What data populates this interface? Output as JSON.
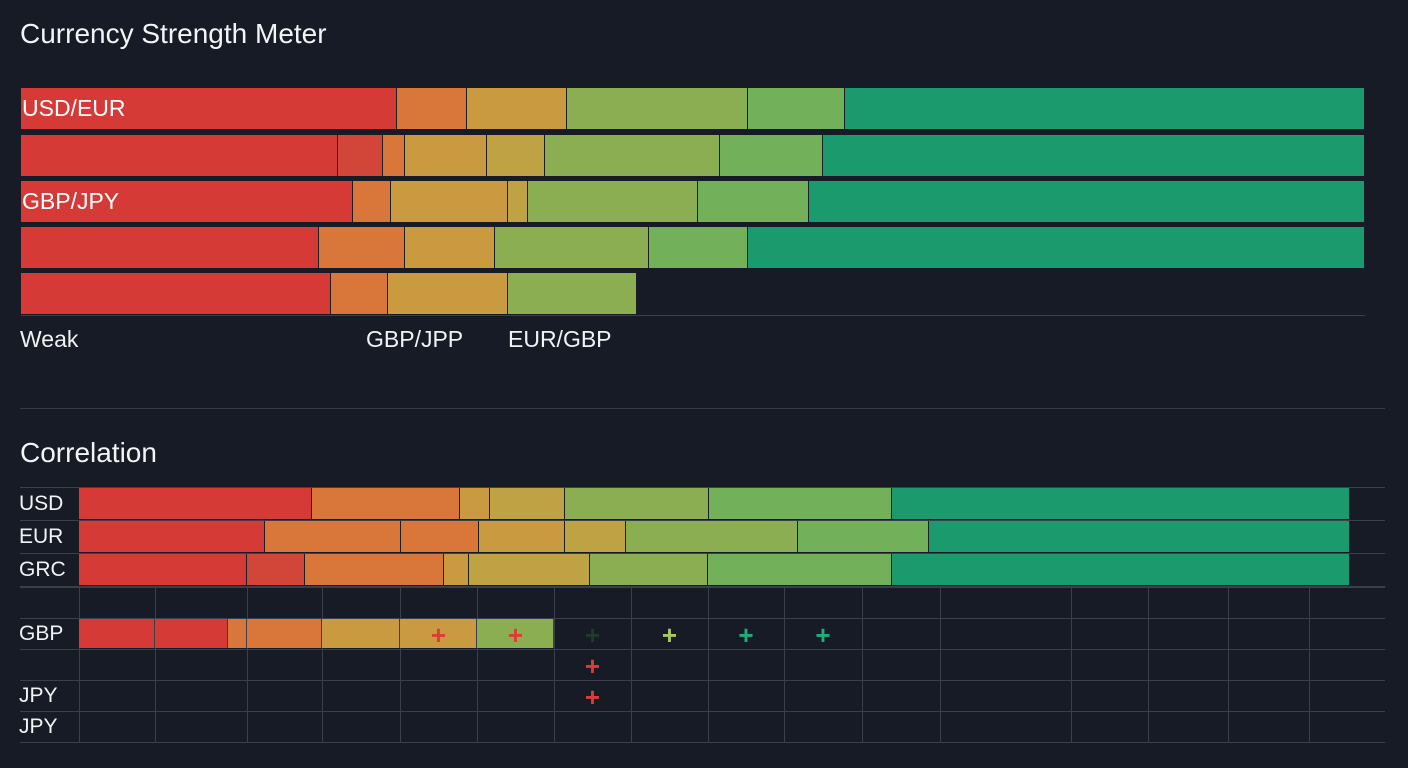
{
  "strength": {
    "title": "Currency Strength Meter",
    "colors": {
      "red": "#d63a36",
      "darkred": "#d2463a",
      "orange": "#d9763a",
      "amber": "#c99a40",
      "amber2": "#bfa244",
      "ygreen": "#8cae52",
      "green": "#72b05a",
      "teal": "#1b9b6d"
    },
    "rows": [
      {
        "label": "USD/EUR",
        "boundaries": [
          28.0,
          33.2,
          40.6,
          54.1,
          61.3,
          100
        ],
        "colors": [
          "red",
          "orange",
          "amber",
          "ygreen",
          "green",
          "teal"
        ]
      },
      {
        "label": "",
        "boundaries": [
          23.6,
          26.9,
          28.6,
          34.7,
          39.0,
          52.0,
          59.7,
          100
        ],
        "colors": [
          "red",
          "darkred",
          "orange",
          "amber",
          "amber2",
          "ygreen",
          "green",
          "teal"
        ]
      },
      {
        "label": "GBP/JPY",
        "boundaries": [
          24.7,
          27.5,
          36.2,
          37.7,
          50.4,
          58.6,
          100
        ],
        "colors": [
          "red",
          "orange",
          "amber",
          "amber2",
          "ygreen",
          "green",
          "teal"
        ]
      },
      {
        "label": "",
        "boundaries": [
          22.2,
          28.6,
          35.3,
          46.7,
          54.1,
          100
        ],
        "colors": [
          "red",
          "orange",
          "amber",
          "ygreen",
          "green",
          "teal"
        ]
      },
      {
        "label": "",
        "boundaries": [
          23.1,
          27.3,
          36.2,
          45.8
        ],
        "colors": [
          "red",
          "orange",
          "amber",
          "ygreen"
        ]
      }
    ],
    "axis_labels": [
      "Weak",
      "GBP/JPP",
      "EUR/GBP"
    ]
  },
  "correlation": {
    "title": "Correlation",
    "bars": [
      {
        "label": "USD",
        "boundaries": [
          18.3,
          30.0,
          32.3,
          38.2,
          49.6,
          64.0,
          100
        ],
        "colors": [
          "red",
          "orange",
          "amber",
          "amber2",
          "ygreen",
          "green",
          "teal"
        ]
      },
      {
        "label": "EUR",
        "boundaries": [
          14.6,
          25.3,
          31.5,
          38.2,
          43.0,
          56.6,
          66.9,
          100
        ],
        "colors": [
          "red",
          "orange",
          "orange",
          "amber",
          "amber2",
          "ygreen",
          "green",
          "teal"
        ]
      },
      {
        "label": "GRC",
        "boundaries": [
          13.2,
          17.8,
          28.7,
          30.7,
          40.2,
          49.5,
          64.0,
          100
        ],
        "colors": [
          "red",
          "darkred",
          "orange",
          "amber",
          "amber2",
          "ygreen",
          "green",
          "teal"
        ]
      }
    ],
    "grid_rows": [
      "",
      "GBP",
      "",
      "JPY",
      "JPY"
    ],
    "gbp_cells": [
      "red",
      "red",
      "orange",
      "orange",
      "amber",
      "amber",
      "ygreen"
    ],
    "markers": [
      {
        "row": 1,
        "col": 4,
        "color": "#e03a36"
      },
      {
        "row": 1,
        "col": 5,
        "color": "#e03a36"
      },
      {
        "row": 1,
        "col": 6,
        "color": "#1e3a2a"
      },
      {
        "row": 1,
        "col": 7,
        "color": "#a8c85a"
      },
      {
        "row": 1,
        "col": 8,
        "color": "#1fae78"
      },
      {
        "row": 1,
        "col": 9,
        "color": "#1fae78"
      },
      {
        "row": 2,
        "col": 6,
        "color": "#e03a36"
      },
      {
        "row": 3,
        "col": 6,
        "color": "#e03a36"
      }
    ]
  }
}
